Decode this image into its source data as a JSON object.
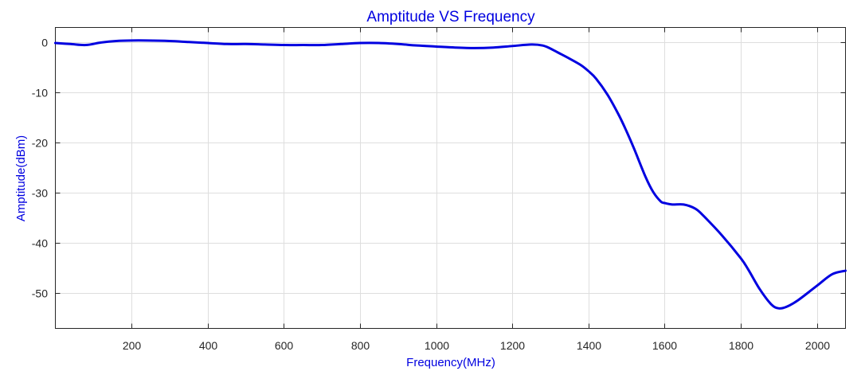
{
  "chart_data": {
    "type": "line",
    "title": "Amptitude VS Frequency",
    "xlabel": "Frequency(MHz)",
    "ylabel": "Amptitude(dBm)",
    "xlim": [
      0,
      2075
    ],
    "ylim": [
      -57,
      3
    ],
    "xticks": [
      200,
      400,
      600,
      800,
      1000,
      1200,
      1400,
      1600,
      1800,
      2000
    ],
    "xtick_labels": [
      "200",
      "400",
      "600",
      "800",
      "1000",
      "1200",
      "1400",
      "1600",
      "1800",
      "2000"
    ],
    "yticks": [
      0,
      -10,
      -20,
      -30,
      -40,
      -50
    ],
    "ytick_labels": [
      "0",
      "-10",
      "-20",
      "-30",
      "-40",
      "-50"
    ],
    "grid": true,
    "colors": {
      "line": "#0000e0",
      "title": "#0000e0",
      "labels": "#0000e0"
    },
    "series": [
      {
        "x": [
          0,
          40,
          80,
          120,
          160,
          200,
          240,
          300,
          350,
          400,
          450,
          500,
          550,
          600,
          650,
          700,
          750,
          800,
          850,
          900,
          950,
          1000,
          1050,
          1100,
          1150,
          1200,
          1250,
          1280,
          1300,
          1320,
          1350,
          1380,
          1400,
          1420,
          1450,
          1480,
          1500,
          1520,
          1550,
          1570,
          1590,
          1600,
          1620,
          1650,
          1680,
          1700,
          1750,
          1800,
          1820,
          1850,
          1880,
          1900,
          1920,
          1950,
          2000,
          2040,
          2075
        ],
        "y": [
          -0.1,
          -0.3,
          -0.5,
          0.0,
          0.3,
          0.4,
          0.4,
          0.3,
          0.1,
          -0.1,
          -0.3,
          -0.3,
          -0.4,
          -0.5,
          -0.5,
          -0.5,
          -0.3,
          -0.1,
          -0.1,
          -0.3,
          -0.6,
          -0.8,
          -1.0,
          -1.1,
          -1.0,
          -0.7,
          -0.4,
          -0.6,
          -1.2,
          -2.0,
          -3.2,
          -4.5,
          -5.7,
          -7.2,
          -10.4,
          -14.5,
          -17.7,
          -21.2,
          -26.8,
          -29.8,
          -31.7,
          -32.0,
          -32.3,
          -32.3,
          -33.1,
          -34.4,
          -38.4,
          -43.0,
          -45.3,
          -49.2,
          -52.2,
          -53.0,
          -52.7,
          -51.4,
          -48.5,
          -46.2,
          -45.5
        ]
      }
    ]
  }
}
